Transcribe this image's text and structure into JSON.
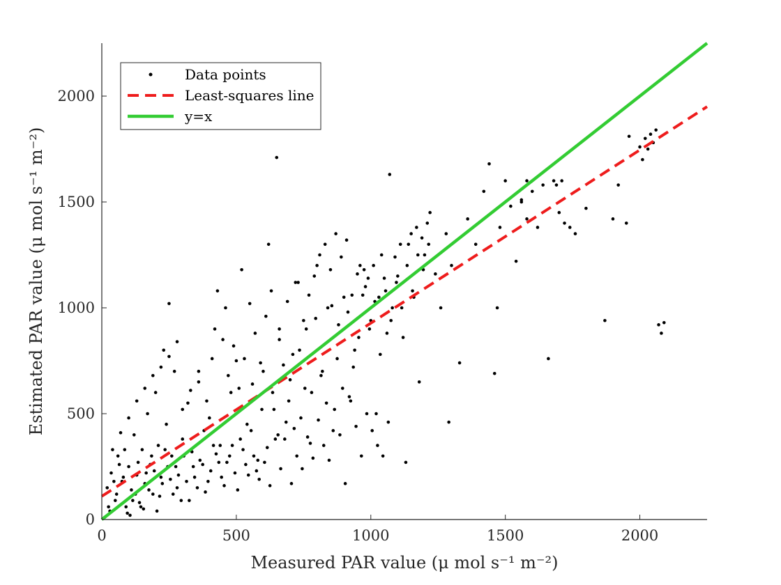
{
  "chart_data": {
    "type": "scatter",
    "title": "",
    "xlabel": "Measured PAR value (μ mol s⁻¹ m⁻²)",
    "ylabel": "Estimated PAR value (μ mol s⁻¹ m⁻²)",
    "xlim": [
      0,
      2250
    ],
    "ylim": [
      0,
      2250
    ],
    "xticks": [
      0,
      500,
      1000,
      1500,
      2000
    ],
    "yticks": [
      0,
      500,
      1000,
      1500,
      2000
    ],
    "grid": false,
    "legend_position": "top-left",
    "legend": [
      {
        "label": "Data points",
        "style": "dot",
        "color": "#000000"
      },
      {
        "label": "Least-squares line",
        "style": "dashed",
        "color": "#ee1c1c"
      },
      {
        "label": "y=x",
        "style": "solid",
        "color": "#33cc33"
      }
    ],
    "series": [
      {
        "name": "Data points",
        "type": "scatter",
        "color": "#000000",
        "points": [
          [
            20,
            150
          ],
          [
            35,
            220
          ],
          [
            50,
            90
          ],
          [
            60,
            300
          ],
          [
            75,
            180
          ],
          [
            90,
            60
          ],
          [
            100,
            250
          ],
          [
            110,
            140
          ],
          [
            120,
            400
          ],
          [
            130,
            210
          ],
          [
            140,
            80
          ],
          [
            150,
            330
          ],
          [
            160,
            170
          ],
          [
            170,
            500
          ],
          [
            180,
            260
          ],
          [
            190,
            120
          ],
          [
            200,
            600
          ],
          [
            210,
            350
          ],
          [
            220,
            200
          ],
          [
            230,
            800
          ],
          [
            240,
            450
          ],
          [
            250,
            1020
          ],
          [
            260,
            300
          ],
          [
            270,
            700
          ],
          [
            280,
            150
          ],
          [
            300,
            380
          ],
          [
            320,
            550
          ],
          [
            340,
            250
          ],
          [
            360,
            650
          ],
          [
            380,
            420
          ],
          [
            400,
            480
          ],
          [
            420,
            900
          ],
          [
            440,
            350
          ],
          [
            460,
            1000
          ],
          [
            480,
            600
          ],
          [
            500,
            750
          ],
          [
            520,
            1180
          ],
          [
            540,
            450
          ],
          [
            560,
            640
          ],
          [
            580,
            280
          ],
          [
            600,
            700
          ],
          [
            620,
            1300
          ],
          [
            640,
            520
          ],
          [
            650,
            1710
          ],
          [
            660,
            850
          ],
          [
            680,
            380
          ],
          [
            700,
            660
          ],
          [
            720,
            1120
          ],
          [
            740,
            480
          ],
          [
            760,
            900
          ],
          [
            780,
            600
          ],
          [
            800,
            1200
          ],
          [
            820,
            700
          ],
          [
            840,
            1000
          ],
          [
            860,
            420
          ],
          [
            880,
            920
          ],
          [
            900,
            1050
          ],
          [
            920,
            580
          ],
          [
            940,
            800
          ],
          [
            960,
            1200
          ],
          [
            980,
            1100
          ],
          [
            1000,
            940
          ],
          [
            1020,
            500
          ],
          [
            1040,
            1250
          ],
          [
            1060,
            880
          ],
          [
            1070,
            1630
          ],
          [
            1080,
            1000
          ],
          [
            1100,
            1150
          ],
          [
            1120,
            860
          ],
          [
            1140,
            1300
          ],
          [
            1160,
            1050
          ],
          [
            1180,
            650
          ],
          [
            1200,
            1250
          ],
          [
            1210,
            1400
          ],
          [
            1220,
            1450
          ],
          [
            1240,
            1160
          ],
          [
            1260,
            1000
          ],
          [
            1280,
            1350
          ],
          [
            1300,
            1200
          ],
          [
            1330,
            740
          ],
          [
            1360,
            1420
          ],
          [
            1390,
            1300
          ],
          [
            1420,
            1550
          ],
          [
            1440,
            1680
          ],
          [
            1460,
            690
          ],
          [
            1480,
            1380
          ],
          [
            1500,
            1600
          ],
          [
            1520,
            1480
          ],
          [
            1540,
            1220
          ],
          [
            1560,
            1500
          ],
          [
            1580,
            1420
          ],
          [
            1600,
            1550
          ],
          [
            1620,
            1380
          ],
          [
            1640,
            1580
          ],
          [
            1660,
            760
          ],
          [
            1680,
            1600
          ],
          [
            1690,
            1580
          ],
          [
            1700,
            1450
          ],
          [
            1710,
            1600
          ],
          [
            1720,
            1400
          ],
          [
            1740,
            1380
          ],
          [
            1760,
            1350
          ],
          [
            1800,
            1470
          ],
          [
            1870,
            940
          ],
          [
            1900,
            1420
          ],
          [
            1920,
            1580
          ],
          [
            1950,
            1400
          ],
          [
            2000,
            1760
          ],
          [
            2010,
            1700
          ],
          [
            2020,
            1800
          ],
          [
            2030,
            1750
          ],
          [
            2040,
            1820
          ],
          [
            2050,
            1780
          ],
          [
            2060,
            1840
          ],
          [
            2070,
            920
          ],
          [
            2080,
            880
          ],
          [
            2090,
            930
          ],
          [
            30,
            40
          ],
          [
            55,
            120
          ],
          [
            80,
            200
          ],
          [
            95,
            30
          ],
          [
            115,
            90
          ],
          [
            135,
            270
          ],
          [
            155,
            50
          ],
          [
            175,
            140
          ],
          [
            195,
            230
          ],
          [
            215,
            110
          ],
          [
            235,
            330
          ],
          [
            255,
            190
          ],
          [
            275,
            250
          ],
          [
            295,
            90
          ],
          [
            315,
            180
          ],
          [
            335,
            320
          ],
          [
            355,
            150
          ],
          [
            375,
            260
          ],
          [
            395,
            180
          ],
          [
            415,
            350
          ],
          [
            435,
            270
          ],
          [
            455,
            160
          ],
          [
            475,
            300
          ],
          [
            495,
            220
          ],
          [
            515,
            380
          ],
          [
            535,
            260
          ],
          [
            555,
            420
          ],
          [
            575,
            230
          ],
          [
            595,
            520
          ],
          [
            615,
            340
          ],
          [
            635,
            600
          ],
          [
            655,
            400
          ],
          [
            675,
            730
          ],
          [
            695,
            560
          ],
          [
            715,
            430
          ],
          [
            735,
            800
          ],
          [
            755,
            620
          ],
          [
            775,
            360
          ],
          [
            795,
            950
          ],
          [
            815,
            680
          ],
          [
            835,
            550
          ],
          [
            855,
            1010
          ],
          [
            875,
            760
          ],
          [
            895,
            620
          ],
          [
            915,
            980
          ],
          [
            935,
            720
          ],
          [
            955,
            860
          ],
          [
            975,
            1180
          ],
          [
            995,
            900
          ],
          [
            1015,
            1030
          ],
          [
            1035,
            780
          ],
          [
            1055,
            1080
          ],
          [
            1075,
            940
          ],
          [
            1095,
            1120
          ],
          [
            1115,
            1000
          ],
          [
            1135,
            1200
          ],
          [
            1155,
            1080
          ],
          [
            1175,
            1250
          ],
          [
            1195,
            1180
          ],
          [
            1215,
            1300
          ],
          [
            10,
            10
          ],
          [
            25,
            60
          ],
          [
            45,
            180
          ],
          [
            65,
            260
          ],
          [
            85,
            330
          ],
          [
            105,
            20
          ],
          [
            125,
            120
          ],
          [
            145,
            60
          ],
          [
            165,
            220
          ],
          [
            185,
            300
          ],
          [
            205,
            40
          ],
          [
            225,
            170
          ],
          [
            245,
            250
          ],
          [
            265,
            120
          ],
          [
            285,
            210
          ],
          [
            305,
            300
          ],
          [
            325,
            90
          ],
          [
            345,
            200
          ],
          [
            365,
            280
          ],
          [
            385,
            130
          ],
          [
            405,
            230
          ],
          [
            425,
            310
          ],
          [
            445,
            200
          ],
          [
            465,
            270
          ],
          [
            485,
            350
          ],
          [
            505,
            140
          ],
          [
            525,
            330
          ],
          [
            545,
            210
          ],
          [
            565,
            300
          ],
          [
            585,
            190
          ],
          [
            605,
            270
          ],
          [
            625,
            160
          ],
          [
            645,
            380
          ],
          [
            665,
            240
          ],
          [
            685,
            460
          ],
          [
            705,
            170
          ],
          [
            725,
            300
          ],
          [
            745,
            240
          ],
          [
            765,
            390
          ],
          [
            785,
            290
          ],
          [
            805,
            470
          ],
          [
            825,
            350
          ],
          [
            845,
            280
          ],
          [
            865,
            520
          ],
          [
            885,
            400
          ],
          [
            905,
            170
          ],
          [
            925,
            560
          ],
          [
            945,
            440
          ],
          [
            965,
            300
          ],
          [
            985,
            500
          ],
          [
            1005,
            420
          ],
          [
            1025,
            350
          ],
          [
            1045,
            300
          ],
          [
            1065,
            460
          ],
          [
            1130,
            270
          ],
          [
            1290,
            460
          ],
          [
            1470,
            1000
          ],
          [
            1560,
            1510
          ],
          [
            1580,
            1600
          ],
          [
            1960,
            1810
          ],
          [
            40,
            330
          ],
          [
            70,
            410
          ],
          [
            100,
            480
          ],
          [
            130,
            560
          ],
          [
            160,
            620
          ],
          [
            190,
            680
          ],
          [
            220,
            720
          ],
          [
            250,
            770
          ],
          [
            280,
            840
          ],
          [
            300,
            520
          ],
          [
            330,
            610
          ],
          [
            360,
            700
          ],
          [
            390,
            560
          ],
          [
            410,
            760
          ],
          [
            430,
            1080
          ],
          [
            450,
            850
          ],
          [
            470,
            680
          ],
          [
            490,
            820
          ],
          [
            510,
            620
          ],
          [
            530,
            760
          ],
          [
            550,
            1020
          ],
          [
            570,
            880
          ],
          [
            590,
            740
          ],
          [
            610,
            960
          ],
          [
            630,
            1080
          ],
          [
            660,
            900
          ],
          [
            690,
            1030
          ],
          [
            710,
            780
          ],
          [
            730,
            1120
          ],
          [
            750,
            940
          ],
          [
            770,
            1060
          ],
          [
            790,
            1150
          ],
          [
            810,
            1250
          ],
          [
            830,
            1300
          ],
          [
            850,
            1180
          ],
          [
            870,
            1350
          ],
          [
            890,
            1240
          ],
          [
            910,
            1320
          ],
          [
            930,
            1060
          ],
          [
            950,
            1160
          ],
          [
            970,
            1060
          ],
          [
            990,
            1140
          ],
          [
            1010,
            1200
          ],
          [
            1030,
            1050
          ],
          [
            1050,
            1140
          ],
          [
            1090,
            1240
          ],
          [
            1110,
            1300
          ],
          [
            1150,
            1350
          ],
          [
            1170,
            1380
          ],
          [
            1190,
            1330
          ]
        ]
      },
      {
        "name": "Least-squares line",
        "type": "line",
        "style": "dashed",
        "color": "#ee1c1c",
        "x": [
          0,
          2250
        ],
        "y": [
          110,
          1950
        ]
      },
      {
        "name": "y=x",
        "type": "line",
        "style": "solid",
        "color": "#33cc33",
        "x": [
          0,
          2250
        ],
        "y": [
          0,
          2250
        ]
      }
    ]
  }
}
